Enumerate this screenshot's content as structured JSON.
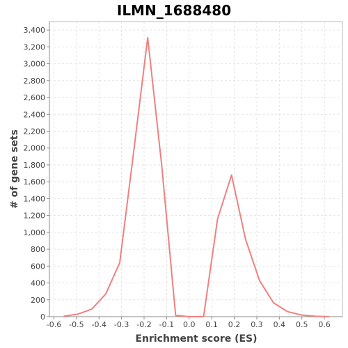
{
  "chart_data": {
    "type": "line",
    "title": "ILMN_1688480",
    "xlabel": "Enrichment score (ES)",
    "ylabel": "# of gene sets",
    "xlim": [
      -0.62,
      0.68
    ],
    "ylim": [
      0,
      3500
    ],
    "x_ticks": [
      -0.6,
      -0.5,
      -0.4,
      -0.3,
      -0.2,
      -0.1,
      0.0,
      0.1,
      0.2,
      0.3,
      0.4,
      0.5,
      0.6
    ],
    "x_tick_labels": [
      "-0.6",
      "-0.5",
      "-0.4",
      "-0.3",
      "-0.2",
      "-0.1",
      "0.0",
      "0.1",
      "0.2",
      "0.3",
      "0.4",
      "0.5",
      "0.6"
    ],
    "y_ticks": [
      0,
      200,
      400,
      600,
      800,
      1000,
      1200,
      1400,
      1600,
      1800,
      2000,
      2200,
      2400,
      2600,
      2800,
      3000,
      3200,
      3400
    ],
    "y_tick_labels": [
      "0",
      "200",
      "400",
      "600",
      "800",
      "1,000",
      "1,200",
      "1,400",
      "1,600",
      "1,800",
      "2,000",
      "2,200",
      "2,400",
      "2,600",
      "2,800",
      "3,000",
      "3,200",
      "3,400"
    ],
    "grid": true,
    "series": [
      {
        "color": "#f08080",
        "x": [
          -0.556,
          -0.494,
          -0.432,
          -0.37,
          -0.308,
          -0.246,
          -0.184,
          -0.122,
          -0.06,
          0.002,
          0.064,
          0.126,
          0.188,
          0.25,
          0.312,
          0.374,
          0.436,
          0.498,
          0.56,
          0.622
        ],
        "y": [
          5,
          30,
          90,
          270,
          640,
          1960,
          3310,
          1800,
          15,
          0,
          0,
          1160,
          1680,
          920,
          430,
          165,
          60,
          20,
          5,
          0
        ]
      }
    ]
  }
}
